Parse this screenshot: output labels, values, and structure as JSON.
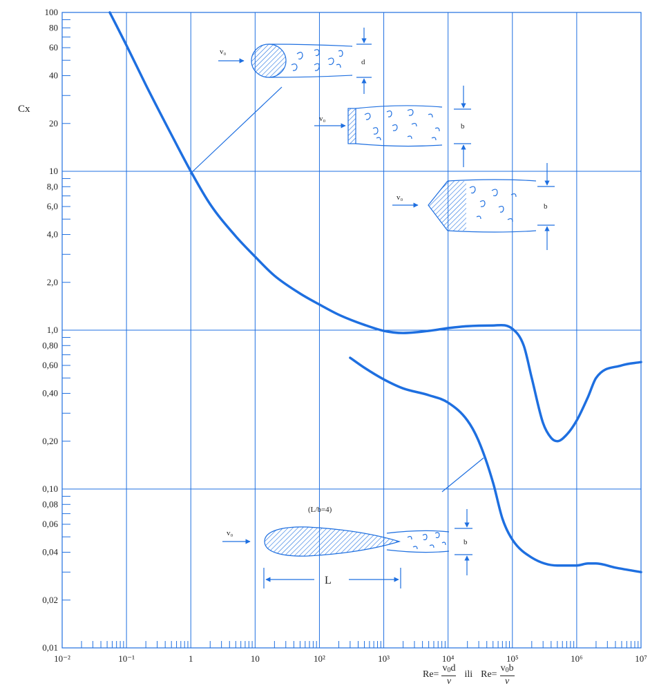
{
  "chart_data": {
    "type": "line",
    "xscale": "log",
    "yscale": "log",
    "xlim": [
      0.01,
      10000000
    ],
    "ylim": [
      0.01,
      100
    ],
    "grid": true,
    "ylabel": "Cx",
    "x_tick_labels": [
      "10⁻²",
      "10⁻¹",
      "1",
      "10",
      "10²",
      "10³",
      "10⁴",
      "10⁵",
      "10⁶",
      "10⁷"
    ],
    "y_tick_labels": [
      "100",
      "80",
      "60",
      "40",
      "20",
      "10",
      "8,0",
      "6,0",
      "4,0",
      "2,0",
      "1,0",
      "0,80",
      "0,60",
      "0,40",
      "0,20",
      "0,10",
      "0,08",
      "0,06",
      "0,04",
      "0,02",
      "0,01"
    ],
    "x_formula": {
      "re": "Re=",
      "v0": "v",
      "zero": "0",
      "d": "d",
      "b": "b",
      "nu": "ν",
      "ili": "ili"
    },
    "series": [
      {
        "color": "#1e6fe0",
        "x": [
          0.055,
          0.1,
          0.2,
          0.5,
          1,
          2,
          5,
          10,
          20,
          50,
          100,
          200,
          500,
          1000,
          2000,
          5000,
          10000,
          20000,
          50000,
          100000,
          150000,
          200000,
          300000,
          400000,
          500000,
          700000,
          1000000,
          1500000,
          2000000,
          5000000,
          10000000
        ],
        "y": [
          100,
          62,
          35,
          17,
          10,
          6.2,
          3.9,
          2.9,
          2.2,
          1.7,
          1.45,
          1.25,
          1.08,
          0.99,
          0.96,
          0.99,
          1.03,
          1.06,
          1.07,
          1.02,
          0.8,
          0.5,
          0.26,
          0.21,
          0.2,
          0.22,
          0.27,
          0.38,
          0.5,
          0.6,
          0.63
        ]
      },
      {
        "color": "#1e6fe0",
        "x": [
          300,
          500,
          1000,
          2000,
          5000,
          10000,
          20000,
          30000,
          50000,
          70000,
          100000,
          200000,
          500000,
          1000000,
          1500000,
          2000000,
          4000000,
          10000000
        ],
        "y": [
          0.67,
          0.58,
          0.49,
          0.43,
          0.39,
          0.35,
          0.27,
          0.2,
          0.11,
          0.065,
          0.048,
          0.037,
          0.033,
          0.033,
          0.034,
          0.034,
          0.032,
          0.03
        ]
      }
    ],
    "bodies": {
      "v0": "v₀",
      "d": "d",
      "b": "b",
      "L": "L",
      "ratio": "(L/b=4)"
    }
  }
}
